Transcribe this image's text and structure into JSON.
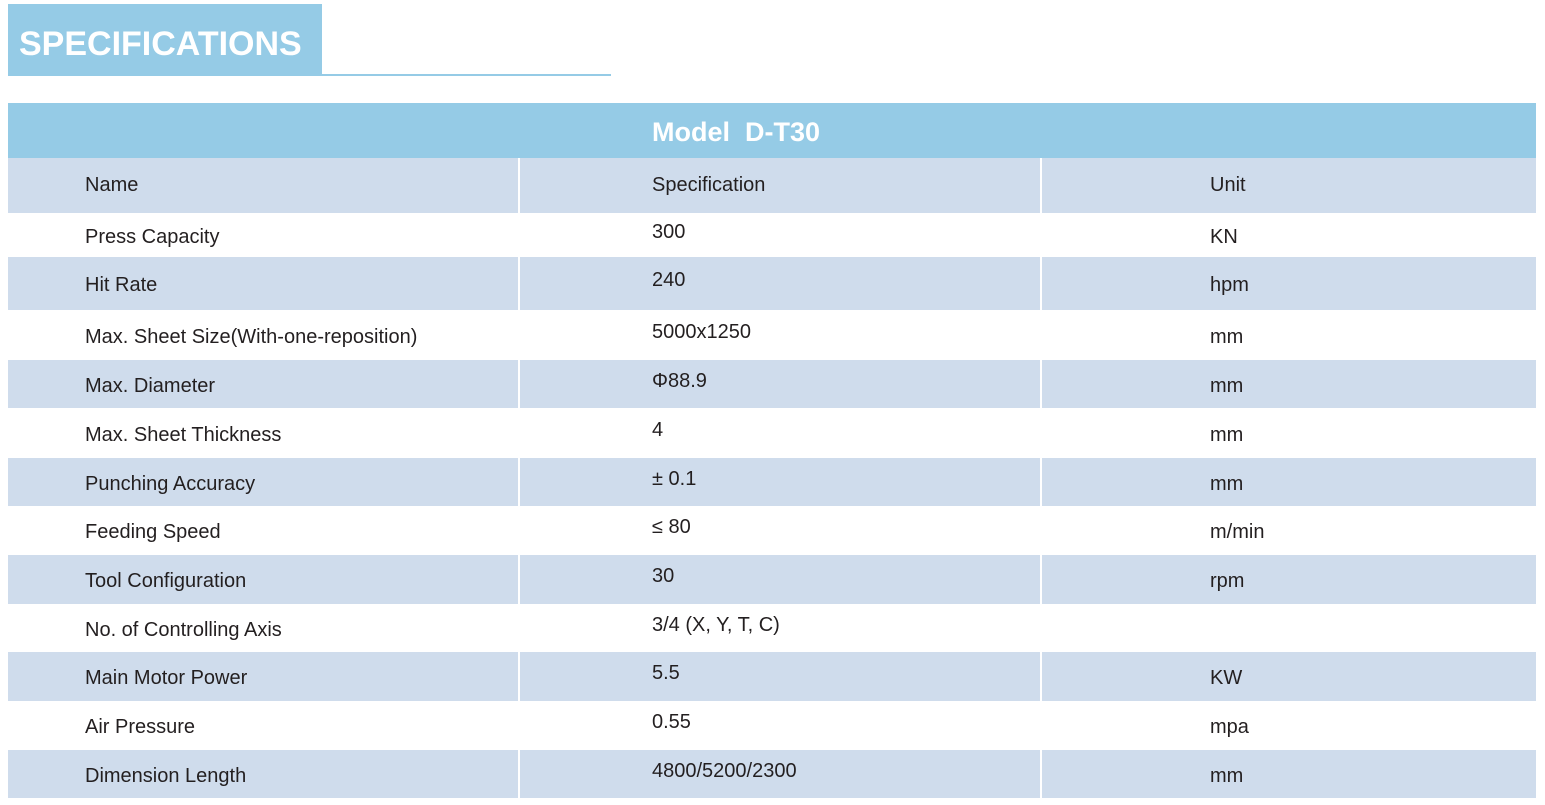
{
  "header": {
    "title": "SPECIFICATIONS"
  },
  "table": {
    "title": "Model  D-T30",
    "columns": [
      "Name",
      "Specification",
      "Unit"
    ],
    "rows": [
      [
        "Press Capacity",
        "300",
        "KN"
      ],
      [
        "Hit Rate",
        "240",
        "hpm"
      ],
      [
        "Max. Sheet Size(With-one-reposition)",
        "5000x1250",
        "mm"
      ],
      [
        "Max. Diameter",
        "Φ88.9",
        "mm"
      ],
      [
        "Max. Sheet Thickness",
        "4",
        "mm"
      ],
      [
        "Punching Accuracy",
        "± 0.1",
        "mm"
      ],
      [
        "Feeding Speed",
        "≤ 80",
        "m/min"
      ],
      [
        "Tool Configuration",
        "30",
        "rpm"
      ],
      [
        "No. of Controlling Axis",
        "3/4 (X, Y, T, C)"
      ],
      [
        "Main Motor Power",
        "5.5",
        "KW"
      ],
      [
        "Air Pressure",
        "0.55",
        "mpa"
      ],
      [
        "Dimension Length",
        "4800/5200/2300",
        "mm"
      ]
    ]
  }
}
